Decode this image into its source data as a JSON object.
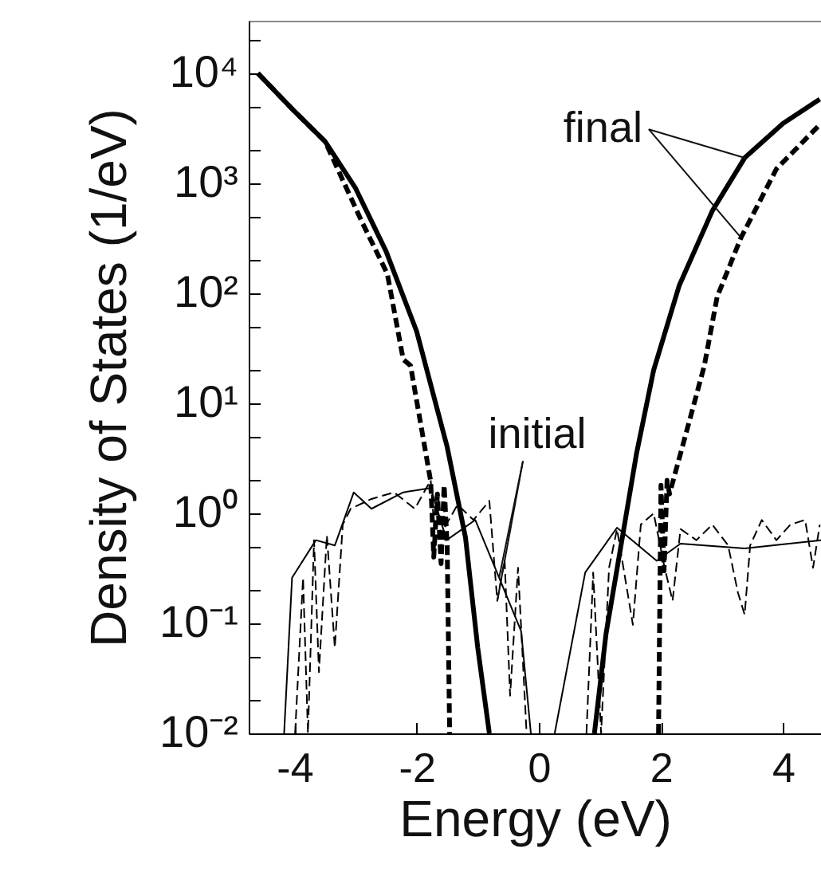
{
  "chart_data": {
    "type": "line",
    "xlabel": "Energy (eV)",
    "ylabel": "Density of States (1/eV)",
    "log": "y",
    "xlim": [
      -4.75,
      4.62
    ],
    "xticks": [
      -4,
      -2,
      0,
      2,
      4
    ],
    "ylim": [
      0.01,
      30000
    ],
    "yticks": [
      {
        "value": 0.01,
        "label": "10⁻²"
      },
      {
        "value": 0.02,
        "label": null
      },
      {
        "value": 0.05,
        "label": null
      },
      {
        "value": 0.1,
        "label": "10⁻¹"
      },
      {
        "value": 0.2,
        "label": null
      },
      {
        "value": 0.5,
        "label": null
      },
      {
        "value": 1,
        "label": "10⁰"
      },
      {
        "value": 2,
        "label": null
      },
      {
        "value": 5,
        "label": null
      },
      {
        "value": 10,
        "label": "10¹"
      },
      {
        "value": 20,
        "label": null
      },
      {
        "value": 50,
        "label": null
      },
      {
        "value": 100,
        "label": "10²"
      },
      {
        "value": 200,
        "label": null
      },
      {
        "value": 500,
        "label": null
      },
      {
        "value": 1000,
        "label": "10³"
      },
      {
        "value": 2000,
        "label": null
      },
      {
        "value": 5000,
        "label": null
      },
      {
        "value": 10000,
        "label": "10⁴"
      },
      {
        "value": 20000,
        "label": null
      }
    ],
    "grid": false,
    "series": [
      {
        "color": "#000000",
        "line_style": "solid",
        "x": [
          -4.6,
          -4.0,
          -3.5,
          -3.0,
          -2.5,
          -2.0,
          -1.5,
          -1.2,
          -1.0,
          -0.81,
          0,
          0.91,
          1.1,
          1.36,
          1.6,
          1.88,
          2.3,
          2.84,
          3.37,
          4.0,
          4.6
        ],
        "values": [
          10000,
          4500,
          2400,
          900,
          240,
          45,
          4,
          0.6,
          0.06,
          0.01,
          null,
          0.01,
          0.08,
          0.57,
          3.5,
          20,
          118,
          560,
          1700,
          3500,
          5800
        ]
      },
      {
        "color": "#000000",
        "line_style": "dashed",
        "x": [
          -4.6,
          -4.0,
          -3.5,
          -2.9,
          -2.48,
          -2.22,
          -2.1,
          -1.77,
          -1.72,
          -1.66,
          -1.6,
          -1.55,
          -1.5,
          -1.46,
          0,
          1.96,
          2.0,
          2.05,
          2.1,
          2.14,
          2.48,
          2.71,
          2.92,
          3.31,
          3.89,
          4.62
        ],
        "values": [
          10000,
          4500,
          2400,
          450,
          150,
          25,
          22,
          1.95,
          0.4,
          1.5,
          0.35,
          1.8,
          0.5,
          0.01,
          null,
          0.01,
          1.8,
          0.3,
          2.0,
          1.5,
          7.4,
          22,
          93,
          320,
          1350,
          3500
        ]
      },
      {
        "color": "#000000",
        "line_style": "solid",
        "x": [
          -4.17,
          -4.04,
          -3.65,
          -3.34,
          -3.03,
          -2.74,
          -2.22,
          -1.77,
          -1.51,
          -1.04,
          -0.65,
          -0.29,
          -0.13,
          0,
          0.26,
          0.76,
          1.28,
          1.93,
          2.32,
          3.37,
          4.62
        ],
        "values": [
          0.01,
          0.26,
          0.57,
          0.51,
          1.55,
          1.1,
          1.55,
          1.7,
          0.57,
          0.87,
          0.26,
          0.085,
          0.01,
          null,
          0.01,
          0.29,
          0.74,
          0.37,
          0.53,
          0.48,
          0.57
        ]
      },
      {
        "color": "#000000",
        "line_style": "dashed",
        "x": [
          -3.99,
          -3.86,
          -3.78,
          -3.68,
          -3.6,
          -3.47,
          -3.34,
          -3.21,
          -3.08,
          -2.74,
          -2.37,
          -2.03,
          -1.77,
          -1.69,
          -1.51,
          -1.33,
          -1.07,
          -0.81,
          -0.68,
          -0.56,
          -0.47,
          -0.34,
          -0.2,
          0,
          0.78,
          0.89,
          1.02,
          1.15,
          1.28,
          1.54,
          1.67,
          1.88,
          2.06,
          2.19,
          2.32,
          2.58,
          2.84,
          3.1,
          3.26,
          3.37,
          3.46,
          3.65,
          3.89,
          4.12,
          4.36,
          4.49,
          4.6
        ],
        "values": [
          0.01,
          0.26,
          0.01,
          0.57,
          0.036,
          0.63,
          0.06,
          0.79,
          1.1,
          1.35,
          1.55,
          1.1,
          2.0,
          0.51,
          0.8,
          1.2,
          0.87,
          1.3,
          0.16,
          0.38,
          0.022,
          0.32,
          0.01,
          null,
          0.01,
          0.29,
          0.01,
          0.32,
          0.72,
          0.097,
          0.79,
          1.0,
          0.32,
          0.16,
          0.72,
          0.57,
          0.79,
          0.51,
          0.19,
          0.12,
          0.51,
          0.87,
          0.57,
          0.79,
          0.87,
          0.32,
          0.79
        ]
      }
    ],
    "annotations": [
      {
        "text": "final",
        "x": 3.37,
        "y": 1700
      },
      {
        "text": "initial",
        "x": -0.65,
        "y": 0.26
      }
    ]
  }
}
